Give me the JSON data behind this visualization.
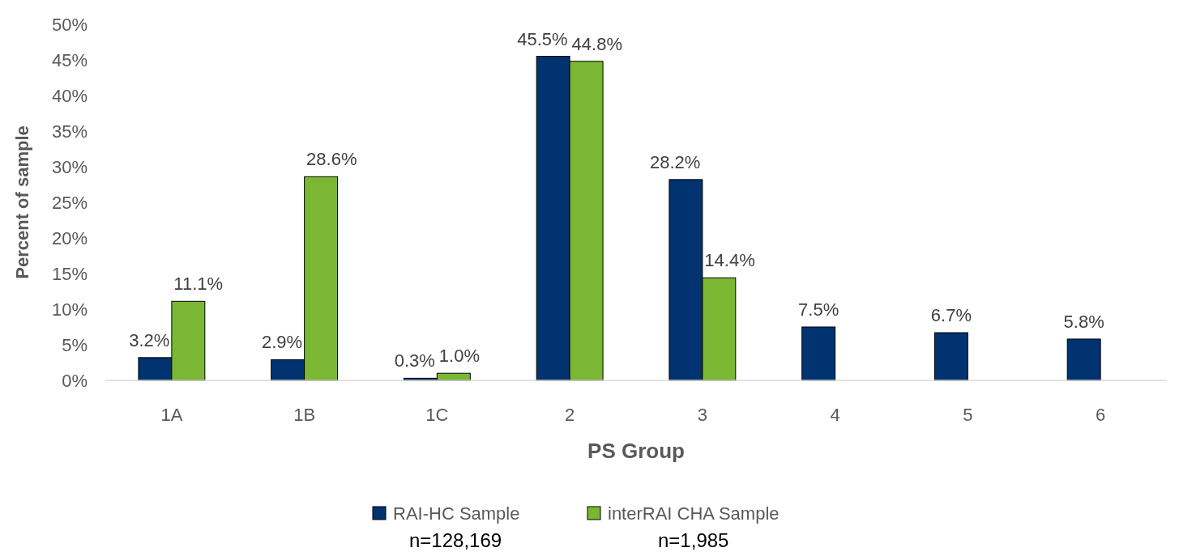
{
  "chart_data": {
    "type": "bar",
    "xlabel": "PS Group",
    "ylabel": "Percent of sample",
    "categories": [
      "1A",
      "1B",
      "1C",
      "2",
      "3",
      "4",
      "5",
      "6"
    ],
    "series": [
      {
        "name": "RAI-HC Sample",
        "color": "#003370",
        "values": [
          3.2,
          2.9,
          0.3,
          45.5,
          28.2,
          7.5,
          6.7,
          5.8
        ],
        "value_labels": [
          "3.2%",
          "2.9%",
          "0.3%",
          "45.5%",
          "28.2%",
          "7.5%",
          "6.7%",
          "5.8%"
        ]
      },
      {
        "name": "interRAI CHA Sample",
        "color": "#7ab833",
        "values": [
          11.1,
          28.6,
          1.0,
          44.8,
          14.4,
          null,
          null,
          null
        ],
        "value_labels": [
          "11.1%",
          "28.6%",
          "1.0%",
          "44.8%",
          "14.4%",
          null,
          null,
          null
        ]
      }
    ],
    "ylim": [
      0,
      50
    ],
    "yticks": [
      {
        "value": 0,
        "label": "0%"
      },
      {
        "value": 5,
        "label": "5%"
      },
      {
        "value": 10,
        "label": "10%"
      },
      {
        "value": 15,
        "label": "15%"
      },
      {
        "value": 20,
        "label": "20%"
      },
      {
        "value": 25,
        "label": "25%"
      },
      {
        "value": 30,
        "label": "30%"
      },
      {
        "value": 35,
        "label": "35%"
      },
      {
        "value": 40,
        "label": "40%"
      },
      {
        "value": 45,
        "label": "45%"
      },
      {
        "value": 50,
        "label": "50%"
      }
    ],
    "legend": "bottom",
    "annotations": [
      "n=128,169",
      "n=1,985"
    ]
  }
}
